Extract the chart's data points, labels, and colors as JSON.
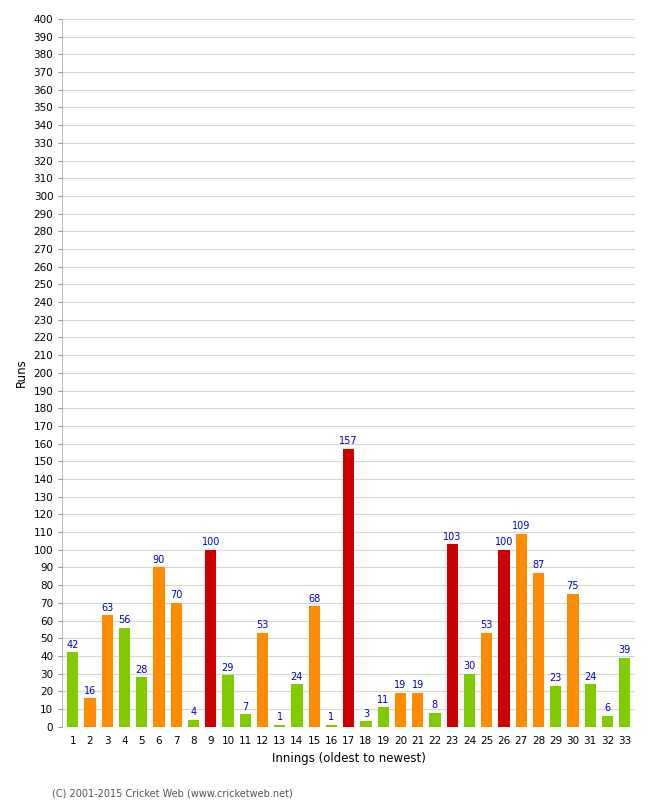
{
  "xlabel": "Innings (oldest to newest)",
  "ylabel": "Runs",
  "innings": [
    1,
    2,
    3,
    4,
    5,
    6,
    7,
    8,
    9,
    10,
    11,
    12,
    13,
    14,
    15,
    16,
    17,
    18,
    19,
    20,
    21,
    22,
    23,
    24,
    25,
    26,
    27,
    28,
    29,
    30,
    31,
    32,
    33
  ],
  "values": [
    42,
    16,
    63,
    56,
    28,
    90,
    70,
    4,
    100,
    29,
    7,
    53,
    1,
    24,
    68,
    1,
    157,
    3,
    11,
    19,
    19,
    8,
    103,
    30,
    53,
    100,
    109,
    87,
    23,
    75,
    24,
    6,
    39
  ],
  "colors": [
    "#80cc00",
    "#ff8c00",
    "#ff8c00",
    "#80cc00",
    "#80cc00",
    "#ff8c00",
    "#ff8c00",
    "#80cc00",
    "#cc0000",
    "#80cc00",
    "#80cc00",
    "#ff8c00",
    "#80cc00",
    "#80cc00",
    "#ff8c00",
    "#80cc00",
    "#cc0000",
    "#80cc00",
    "#80cc00",
    "#ff8c00",
    "#ff8c00",
    "#80cc00",
    "#cc0000",
    "#80cc00",
    "#ff8c00",
    "#cc0000",
    "#ff8c00",
    "#ff8c00",
    "#80cc00",
    "#ff8c00",
    "#80cc00",
    "#80cc00",
    "#80cc00"
  ],
  "ylim": [
    0,
    400
  ],
  "yticks": [
    0,
    10,
    20,
    30,
    40,
    50,
    60,
    70,
    80,
    90,
    100,
    110,
    120,
    130,
    140,
    150,
    160,
    170,
    180,
    190,
    200,
    210,
    220,
    230,
    240,
    250,
    260,
    270,
    280,
    290,
    300,
    310,
    320,
    330,
    340,
    350,
    360,
    370,
    380,
    390,
    400
  ],
  "grid_color": "#d8d8d8",
  "background_color": "#ffffff",
  "bar_width": 0.65,
  "label_color": "#0000cc",
  "label_fontsize": 7.0,
  "tick_fontsize": 7.5,
  "xlabel_fontsize": 8.5,
  "ylabel_fontsize": 8.5,
  "copyright": "(C) 2001-2015 Cricket Web (www.cricketweb.net)"
}
